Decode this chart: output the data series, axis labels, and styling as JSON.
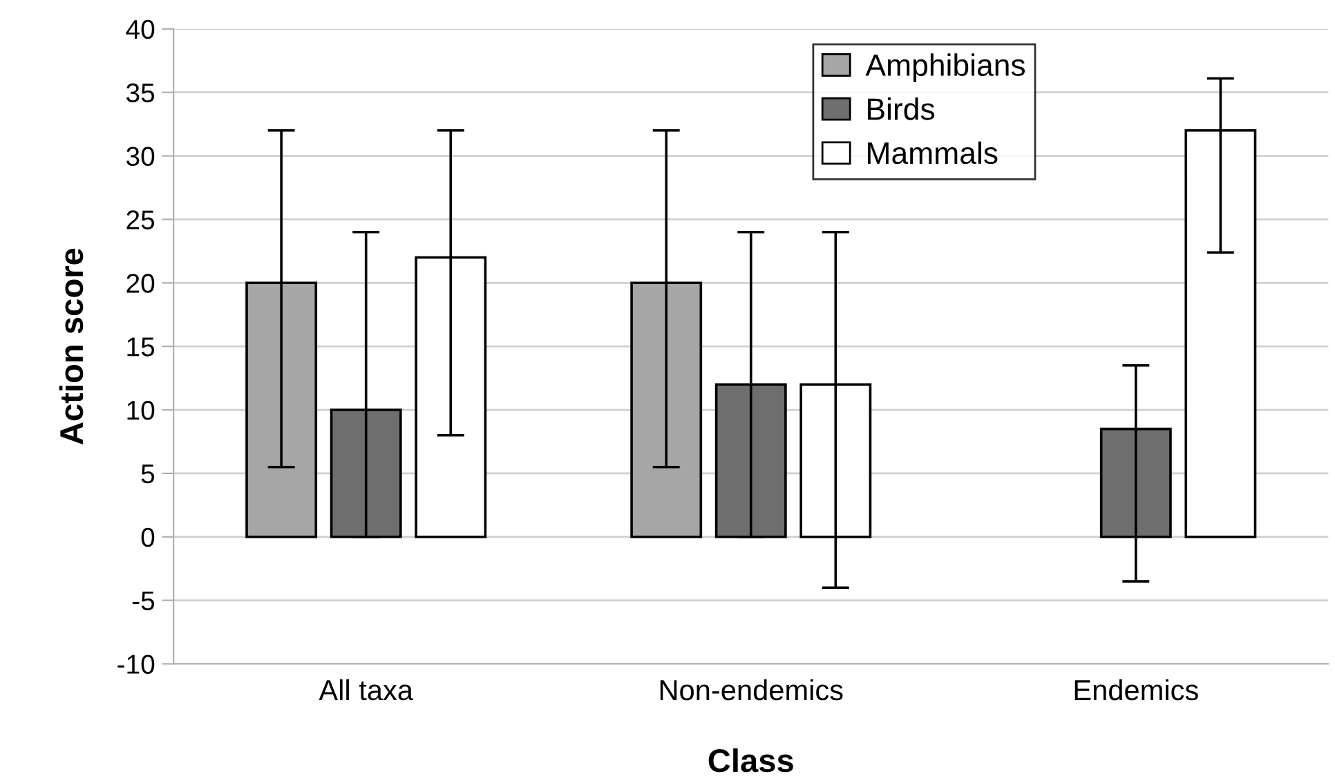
{
  "chart_data": {
    "type": "bar",
    "xlabel": "Class",
    "ylabel": "Action score",
    "categories": [
      "All taxa",
      "Non-endemics",
      "Endemics"
    ],
    "series": [
      {
        "name": "Amphibians",
        "color": "#a6a6a6",
        "values": [
          20,
          20,
          null
        ],
        "errors": [
          [
            5.5,
            32
          ],
          [
            5.5,
            32
          ],
          null
        ]
      },
      {
        "name": "Birds",
        "color": "#6e6e6e",
        "values": [
          10,
          12,
          8.5
        ],
        "errors": [
          [
            0,
            24
          ],
          [
            0,
            24
          ],
          [
            -3.5,
            13.5
          ]
        ]
      },
      {
        "name": "Mammals",
        "color": "#ffffff",
        "values": [
          22,
          12,
          32
        ],
        "errors": [
          [
            8,
            32
          ],
          [
            -4,
            24
          ],
          [
            22.4,
            36.1
          ]
        ]
      }
    ],
    "ylim": [
      -10,
      40
    ],
    "yticks": [
      -10,
      -5,
      0,
      5,
      10,
      15,
      20,
      25,
      30,
      35,
      40
    ],
    "grid": "y",
    "legend": "top"
  }
}
